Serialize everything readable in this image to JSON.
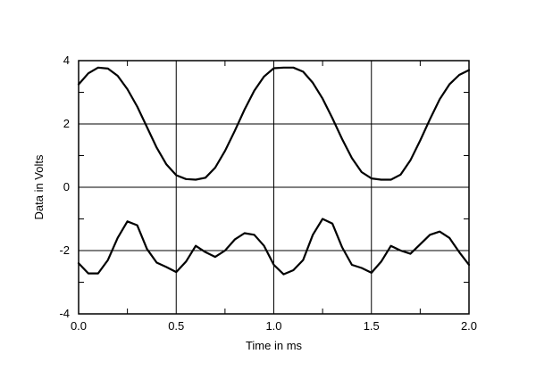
{
  "chart_data": {
    "type": "line",
    "title": "",
    "xlabel": "Time in ms",
    "ylabel": "Data in Volts",
    "xlim": [
      0.0,
      2.0
    ],
    "ylim": [
      -4,
      4
    ],
    "x_ticks": [
      0.0,
      0.5,
      1.0,
      1.5,
      2.0
    ],
    "x_tick_labels": [
      "0.0",
      "0.5",
      "1.0",
      "1.5",
      "2.0"
    ],
    "y_ticks": [
      -4,
      -2,
      0,
      2,
      4
    ],
    "y_tick_labels": [
      "-4",
      "-2",
      "0",
      "2",
      "4"
    ],
    "grid": true,
    "legend": "none",
    "line_color": "#000000",
    "x": [
      0.0,
      0.05,
      0.1,
      0.15,
      0.2,
      0.25,
      0.3,
      0.35,
      0.4,
      0.45,
      0.5,
      0.55,
      0.6,
      0.65,
      0.7,
      0.75,
      0.8,
      0.85,
      0.9,
      0.95,
      1.0,
      1.05,
      1.1,
      1.15,
      1.2,
      1.25,
      1.3,
      1.35,
      1.4,
      1.45,
      1.5,
      1.55,
      1.6,
      1.65,
      1.7,
      1.75,
      1.8,
      1.85,
      1.9,
      1.95,
      2.0
    ],
    "series": [
      {
        "values": [
          3.25,
          3.6,
          3.78,
          3.75,
          3.52,
          3.1,
          2.55,
          1.9,
          1.25,
          0.72,
          0.38,
          0.26,
          0.24,
          0.3,
          0.62,
          1.15,
          1.78,
          2.45,
          3.05,
          3.5,
          3.76,
          3.78,
          3.78,
          3.65,
          3.3,
          2.8,
          2.18,
          1.52,
          0.92,
          0.48,
          0.28,
          0.24,
          0.24,
          0.4,
          0.85,
          1.48,
          2.15,
          2.78,
          3.25,
          3.55,
          3.7
        ]
      },
      {
        "values": [
          -2.4,
          -2.72,
          -2.72,
          -2.3,
          -1.6,
          -1.08,
          -1.2,
          -1.95,
          -2.38,
          -2.52,
          -2.68,
          -2.35,
          -1.85,
          -2.05,
          -2.2,
          -2.0,
          -1.65,
          -1.45,
          -1.5,
          -1.85,
          -2.45,
          -2.75,
          -2.62,
          -2.3,
          -1.5,
          -1.0,
          -1.15,
          -1.9,
          -2.45,
          -2.55,
          -2.7,
          -2.35,
          -1.85,
          -2.0,
          -2.1,
          -1.8,
          -1.5,
          -1.4,
          -1.6,
          -2.05,
          -2.45
        ]
      }
    ]
  }
}
